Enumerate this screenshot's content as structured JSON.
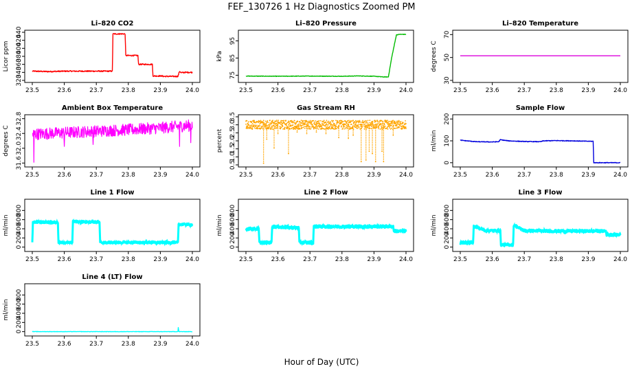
{
  "page_title": "FEF_130726  1 Hz Diagnostics Zoomed PM",
  "x_axis_label": "Hour of Day (UTC)",
  "chart_data": [
    {
      "type": "line",
      "title": "Li–820 CO2",
      "ylabel": "Licor ppm",
      "color": "#ff0000",
      "xlim": [
        23.5,
        24.0
      ],
      "ylim": [
        320,
        440
      ],
      "xticks": [
        "23.5",
        "23.6",
        "23.7",
        "23.8",
        "23.9",
        "24.0"
      ],
      "yticks": [
        "320",
        "340",
        "360",
        "380",
        "400",
        "420",
        "440"
      ],
      "x": [
        23.5,
        23.55,
        23.6,
        23.65,
        23.7,
        23.75,
        23.752,
        23.79,
        23.792,
        23.83,
        23.832,
        23.875,
        23.877,
        23.905,
        23.91,
        23.955,
        23.96,
        23.965,
        23.975,
        24.0
      ],
      "y": [
        343,
        342,
        343,
        343,
        343,
        343,
        436,
        436,
        382,
        382,
        360,
        360,
        331,
        331,
        330,
        330,
        343,
        339,
        340,
        340
      ],
      "noise": 1.5
    },
    {
      "type": "line",
      "title": "Li–820 Pressure",
      "ylabel": "kPa",
      "color": "#00bb00",
      "xlim": [
        23.5,
        24.0
      ],
      "ylim": [
        72,
        100
      ],
      "xticks": [
        "23.5",
        "23.6",
        "23.7",
        "23.8",
        "23.9",
        "24.0"
      ],
      "yticks": [
        "75",
        "85",
        "95"
      ],
      "x": [
        23.5,
        23.6,
        23.7,
        23.8,
        23.85,
        23.9,
        23.93,
        23.945,
        23.955,
        23.965,
        23.97,
        23.98,
        24.0
      ],
      "y": [
        74.5,
        74.4,
        74.5,
        74.4,
        74.6,
        74.4,
        74.0,
        74.0,
        85.0,
        94.0,
        98.5,
        98.8,
        98.8
      ],
      "noise": 0.15
    },
    {
      "type": "line",
      "title": "Li–820 Temperature",
      "ylabel": "degrees C",
      "color": "#dd00dd",
      "xlim": [
        23.5,
        24.0
      ],
      "ylim": [
        30,
        72
      ],
      "xticks": [
        "23.5",
        "23.6",
        "23.7",
        "23.8",
        "23.9",
        "24.0"
      ],
      "yticks": [
        "30",
        "50",
        "70"
      ],
      "x": [
        23.5,
        24.0
      ],
      "y": [
        51.5,
        51.5
      ],
      "noise": 0
    },
    {
      "type": "line",
      "title": "Ambient Box Temperature",
      "ylabel": "degrees C",
      "color": "#ff00ff",
      "xlim": [
        23.5,
        24.0
      ],
      "ylim": [
        31.55,
        32.85
      ],
      "xticks": [
        "23.5",
        "23.6",
        "23.7",
        "23.8",
        "23.9",
        "24.0"
      ],
      "yticks": [
        "31.6",
        "32.0",
        "32.4",
        "32.8"
      ],
      "x": [
        23.5,
        23.6,
        23.7,
        23.8,
        23.9,
        24.0
      ],
      "y": [
        32.38,
        32.42,
        32.46,
        32.5,
        32.55,
        32.62
      ],
      "noise": 0.16,
      "spikes": [
        [
          23.505,
          31.62
        ],
        [
          23.6,
          32.05
        ],
        [
          23.69,
          32.1
        ],
        [
          23.96,
          32.05
        ],
        [
          23.995,
          32.15
        ]
      ]
    },
    {
      "type": "points",
      "title": "Gas Stream RH",
      "ylabel": "percent",
      "color": "#ffa500",
      "xlim": [
        23.5,
        24.0
      ],
      "ylim": [
        0.5,
        3.5
      ],
      "xticks": [
        "23.5",
        "23.6",
        "23.7",
        "23.8",
        "23.9",
        "24.0"
      ],
      "yticks": [
        "0.5",
        "1.0",
        "1.5",
        "2.0",
        "2.5",
        "3.0",
        "3.5"
      ],
      "x": [
        23.5,
        24.0
      ],
      "y": [
        3.0,
        3.0
      ],
      "noise": 0.28,
      "spikes": [
        [
          23.555,
          0.6
        ],
        [
          23.565,
          2.1
        ],
        [
          23.588,
          1.55
        ],
        [
          23.6,
          2.45
        ],
        [
          23.633,
          1.2
        ],
        [
          23.66,
          2.55
        ],
        [
          23.69,
          2.45
        ],
        [
          23.72,
          2.55
        ],
        [
          23.75,
          2.45
        ],
        [
          23.79,
          2.2
        ],
        [
          23.82,
          2.15
        ],
        [
          23.835,
          2.35
        ],
        [
          23.86,
          0.7
        ],
        [
          23.875,
          0.8
        ],
        [
          23.885,
          1.35
        ],
        [
          23.895,
          1.2
        ],
        [
          23.905,
          0.7
        ],
        [
          23.925,
          1.35
        ],
        [
          23.93,
          0.7
        ],
        [
          23.96,
          2.35
        ]
      ]
    },
    {
      "type": "line",
      "title": "Sample Flow",
      "ylabel": "ml/min",
      "color": "#0000dd",
      "xlim": [
        23.5,
        24.0
      ],
      "ylim": [
        -10,
        210
      ],
      "xticks": [
        "23.5",
        "23.6",
        "23.7",
        "23.8",
        "23.9",
        "24.0"
      ],
      "yticks": [
        "0",
        "100",
        "200"
      ],
      "x": [
        23.5,
        23.52,
        23.55,
        23.6,
        23.62,
        23.625,
        23.65,
        23.7,
        23.75,
        23.76,
        23.8,
        23.85,
        23.9,
        23.915,
        23.917,
        23.93,
        24.0
      ],
      "y": [
        103,
        100,
        96,
        95,
        96,
        105,
        100,
        97,
        96,
        100,
        101,
        100,
        98,
        98,
        0,
        0,
        0
      ],
      "noise": 1.5
    },
    {
      "type": "band",
      "title": "Line 1 Flow",
      "ylabel": "ml/min",
      "color": "#00ffff",
      "xlim": [
        23.5,
        24.0
      ],
      "ylim": [
        -50,
        1000
      ],
      "xticks": [
        "23.5",
        "23.6",
        "23.7",
        "23.8",
        "23.9",
        "24.0"
      ],
      "yticks": [
        "0",
        "200",
        "400",
        "600",
        "800"
      ],
      "x": [
        23.5,
        23.502,
        23.58,
        23.582,
        23.625,
        23.627,
        23.71,
        23.712,
        23.955,
        23.957,
        24.0
      ],
      "y": [
        100,
        550,
        540,
        100,
        100,
        560,
        545,
        100,
        100,
        500,
        490
      ],
      "noise": 20
    },
    {
      "type": "band",
      "title": "Line 2 Flow",
      "ylabel": "ml/min",
      "color": "#00ffff",
      "xlim": [
        23.5,
        24.0
      ],
      "ylim": [
        -50,
        1000
      ],
      "xticks": [
        "23.5",
        "23.6",
        "23.7",
        "23.8",
        "23.9",
        "24.0"
      ],
      "yticks": [
        "0",
        "200",
        "400",
        "600",
        "800"
      ],
      "x": [
        23.5,
        23.54,
        23.542,
        23.58,
        23.582,
        23.665,
        23.667,
        23.71,
        23.712,
        23.96,
        23.962,
        24.0
      ],
      "y": [
        400,
        400,
        100,
        100,
        450,
        420,
        100,
        100,
        450,
        450,
        350,
        350
      ],
      "noise": 28
    },
    {
      "type": "band",
      "title": "Line 3 Flow",
      "ylabel": "ml/min",
      "color": "#00ffff",
      "xlim": [
        23.5,
        24.0
      ],
      "ylim": [
        -50,
        1000
      ],
      "xticks": [
        "23.5",
        "23.6",
        "23.7",
        "23.8",
        "23.9",
        "24.0"
      ],
      "yticks": [
        "0",
        "200",
        "400",
        "600",
        "800"
      ],
      "x": [
        23.5,
        23.502,
        23.54,
        23.542,
        23.58,
        23.625,
        23.627,
        23.665,
        23.667,
        23.7,
        23.8,
        23.9,
        23.955,
        23.957,
        24.0
      ],
      "y": [
        50,
        100,
        100,
        450,
        360,
        360,
        50,
        50,
        480,
        360,
        350,
        350,
        350,
        270,
        270
      ],
      "noise": 25
    },
    {
      "type": "line",
      "title": "Line 4 (LT) Flow",
      "ylabel": "ml/min",
      "color": "#00ffff",
      "xlim": [
        23.5,
        24.0
      ],
      "ylim": [
        -50,
        1000
      ],
      "xticks": [
        "23.5",
        "23.6",
        "23.7",
        "23.8",
        "23.9",
        "24.0"
      ],
      "yticks": [
        "0",
        "200",
        "400",
        "600",
        "800"
      ],
      "x": [
        23.5,
        23.955,
        23.956,
        23.958,
        24.0
      ],
      "y": [
        0,
        0,
        90,
        0,
        0
      ],
      "noise": 4
    }
  ]
}
